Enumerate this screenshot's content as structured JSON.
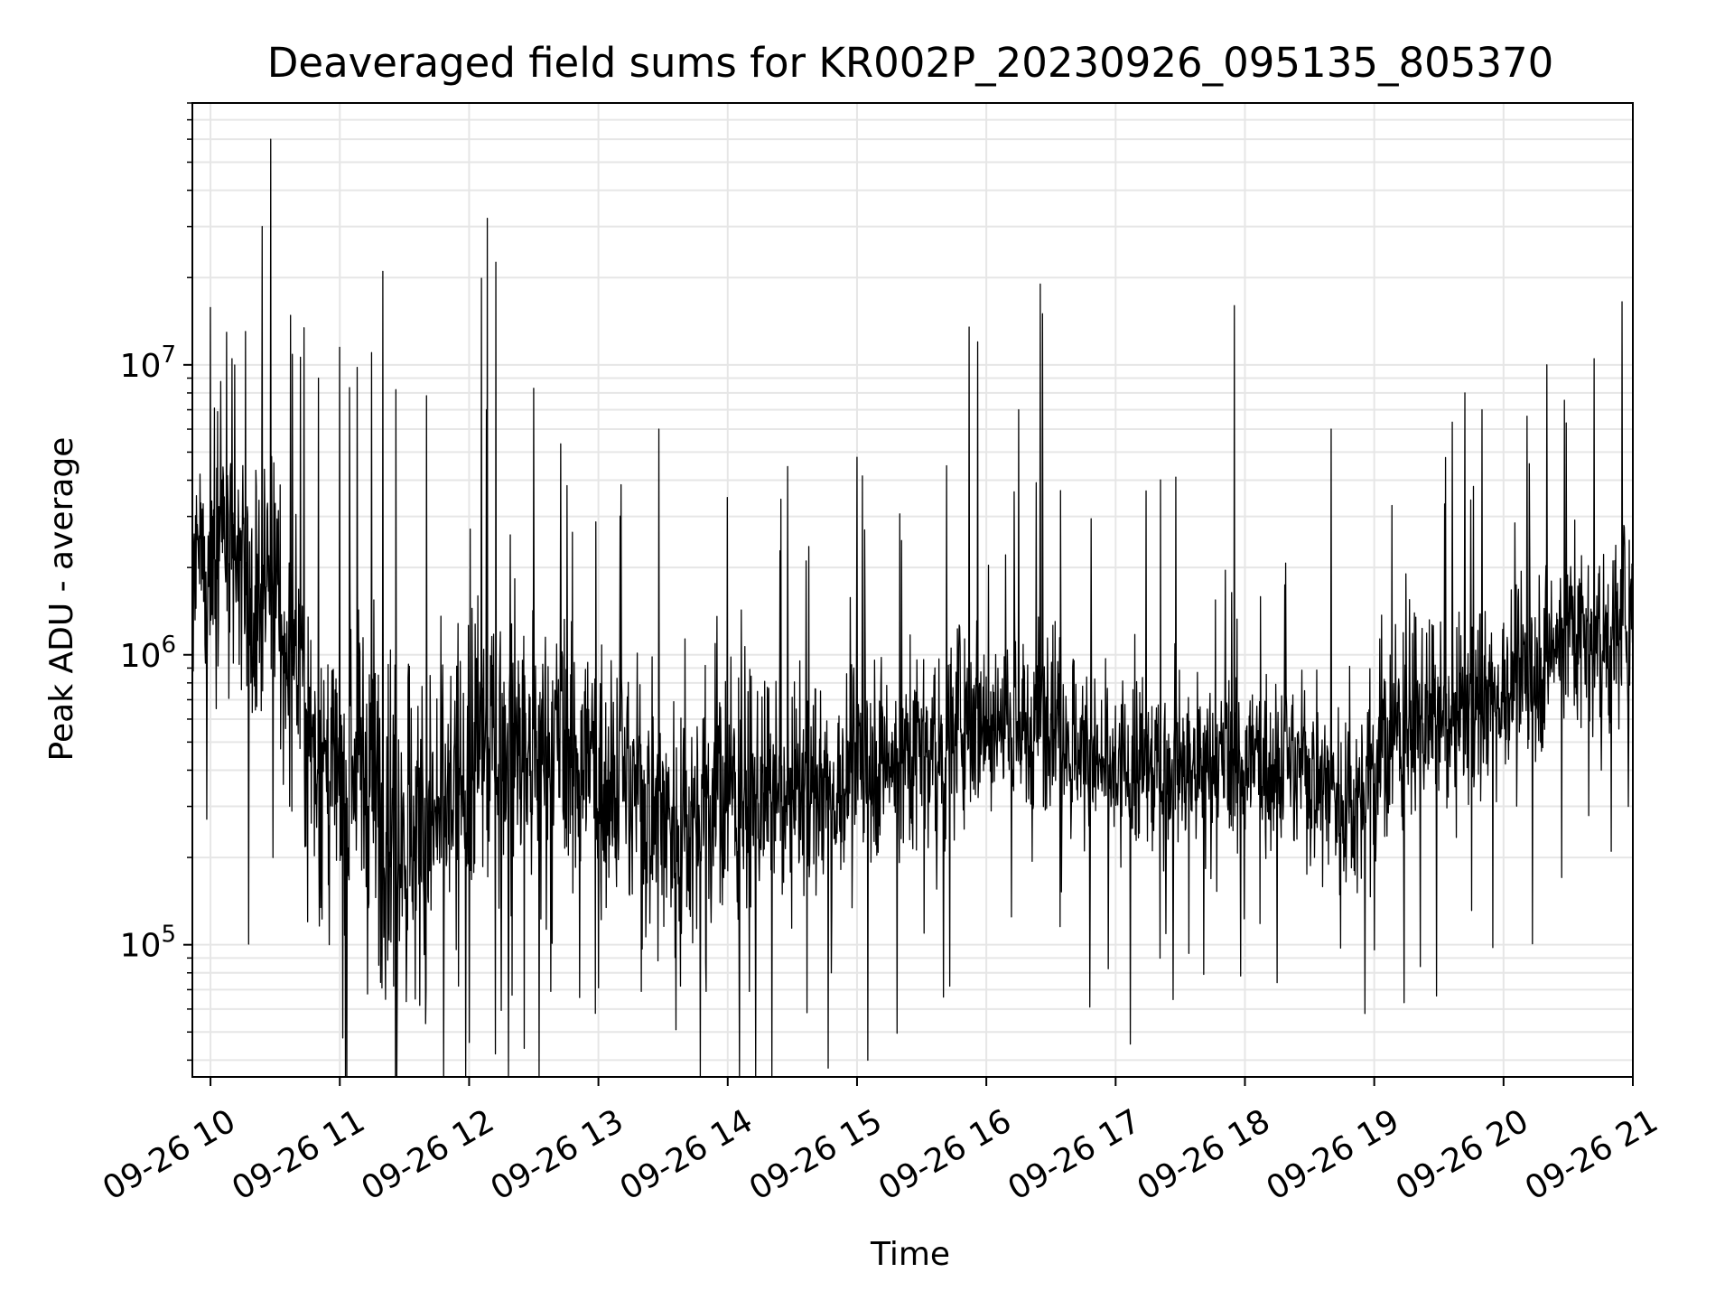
{
  "chart_data": {
    "type": "line",
    "title": "Deaveraged field sums for KR002P_20230926_095135_805370",
    "xlabel": "Time",
    "ylabel": "Peak ADU - average",
    "yscale": "log",
    "ylim": [
      35000,
      80000000
    ],
    "xlim": [
      "2023-09-26 09:51:35",
      "2023-09-26 21:00:00"
    ],
    "grid": true,
    "legend": "none",
    "line_color": "#000000",
    "grid_color": "#e6e6e6",
    "x_ticks": [
      {
        "t": "2023-09-26 10:00",
        "label": "09-26 10"
      },
      {
        "t": "2023-09-26 11:00",
        "label": "09-26 11"
      },
      {
        "t": "2023-09-26 12:00",
        "label": "09-26 12"
      },
      {
        "t": "2023-09-26 13:00",
        "label": "09-26 13"
      },
      {
        "t": "2023-09-26 14:00",
        "label": "09-26 14"
      },
      {
        "t": "2023-09-26 15:00",
        "label": "09-26 15"
      },
      {
        "t": "2023-09-26 16:00",
        "label": "09-26 16"
      },
      {
        "t": "2023-09-26 17:00",
        "label": "09-26 17"
      },
      {
        "t": "2023-09-26 18:00",
        "label": "09-26 18"
      },
      {
        "t": "2023-09-26 19:00",
        "label": "09-26 19"
      },
      {
        "t": "2023-09-26 20:00",
        "label": "09-26 20"
      },
      {
        "t": "2023-09-26 21:00",
        "label": "09-26 21"
      }
    ],
    "y_ticks": [
      {
        "value": 100000,
        "base": "10",
        "exp": "5"
      },
      {
        "value": 1000000,
        "base": "10",
        "exp": "6"
      },
      {
        "value": 10000000,
        "base": "10",
        "exp": "7"
      }
    ],
    "series": [
      {
        "points": [
          [
            "2023-09-26 09:51:35",
            1500000
          ],
          [
            "2023-09-26 09:55",
            2200000
          ],
          [
            "2023-09-26 10:00",
            1800000
          ],
          [
            "2023-09-26 10:05",
            2600000
          ],
          [
            "2023-09-26 10:10",
            1700000
          ],
          [
            "2023-09-26 10:15",
            1900000
          ],
          [
            "2023-09-26 10:20",
            1400000
          ],
          [
            "2023-09-26 10:25",
            2100000
          ],
          [
            "2023-09-26 10:30",
            1500000
          ],
          [
            "2023-09-26 10:35",
            900000
          ],
          [
            "2023-09-26 10:40",
            1100000
          ],
          [
            "2023-09-26 10:45",
            600000
          ],
          [
            "2023-09-26 10:50",
            420000
          ],
          [
            "2023-09-26 10:55",
            360000
          ],
          [
            "2023-09-26 11:00",
            340000
          ],
          [
            "2023-09-26 11:10",
            450000
          ],
          [
            "2023-09-26 11:20",
            300000
          ],
          [
            "2023-09-26 11:30",
            280000
          ],
          [
            "2023-09-26 11:40",
            240000
          ],
          [
            "2023-09-26 11:50",
            300000
          ],
          [
            "2023-09-26 12:00",
            420000
          ],
          [
            "2023-09-26 12:10",
            550000
          ],
          [
            "2023-09-26 12:20",
            480000
          ],
          [
            "2023-09-26 12:30",
            400000
          ],
          [
            "2023-09-26 12:40",
            500000
          ],
          [
            "2023-09-26 12:50",
            450000
          ],
          [
            "2023-09-26 13:00",
            420000
          ],
          [
            "2023-09-26 13:10",
            380000
          ],
          [
            "2023-09-26 13:20",
            320000
          ],
          [
            "2023-09-26 13:30",
            280000
          ],
          [
            "2023-09-26 13:40",
            260000
          ],
          [
            "2023-09-26 13:50",
            300000
          ],
          [
            "2023-09-26 14:00",
            350000
          ],
          [
            "2023-09-26 14:10",
            320000
          ],
          [
            "2023-09-26 14:20",
            300000
          ],
          [
            "2023-09-26 14:30",
            340000
          ],
          [
            "2023-09-26 14:40",
            360000
          ],
          [
            "2023-09-26 14:50",
            330000
          ],
          [
            "2023-09-26 15:00",
            400000
          ],
          [
            "2023-09-26 15:10",
            450000
          ],
          [
            "2023-09-26 15:20",
            420000
          ],
          [
            "2023-09-26 15:30",
            500000
          ],
          [
            "2023-09-26 15:40",
            480000
          ],
          [
            "2023-09-26 15:50",
            650000
          ],
          [
            "2023-09-26 16:00",
            600000
          ],
          [
            "2023-09-26 16:10",
            580000
          ],
          [
            "2023-09-26 16:20",
            520000
          ],
          [
            "2023-09-26 16:30",
            700000
          ],
          [
            "2023-09-26 16:40",
            500000
          ],
          [
            "2023-09-26 16:50",
            420000
          ],
          [
            "2023-09-26 17:00",
            380000
          ],
          [
            "2023-09-26 17:10",
            400000
          ],
          [
            "2023-09-26 17:20",
            420000
          ],
          [
            "2023-09-26 17:30",
            380000
          ],
          [
            "2023-09-26 17:40",
            400000
          ],
          [
            "2023-09-26 17:50",
            420000
          ],
          [
            "2023-09-26 18:00",
            430000
          ],
          [
            "2023-09-26 18:10",
            450000
          ],
          [
            "2023-09-26 18:20",
            420000
          ],
          [
            "2023-09-26 18:30",
            400000
          ],
          [
            "2023-09-26 18:40",
            350000
          ],
          [
            "2023-09-26 18:50",
            300000
          ],
          [
            "2023-09-26 19:00",
            400000
          ],
          [
            "2023-09-26 19:10",
            550000
          ],
          [
            "2023-09-26 19:20",
            600000
          ],
          [
            "2023-09-26 19:30",
            550000
          ],
          [
            "2023-09-26 19:40",
            650000
          ],
          [
            "2023-09-26 19:50",
            700000
          ],
          [
            "2023-09-26 20:00",
            750000
          ],
          [
            "2023-09-26 20:10",
            800000
          ],
          [
            "2023-09-26 20:20",
            1000000
          ],
          [
            "2023-09-26 20:30",
            1300000
          ],
          [
            "2023-09-26 20:40",
            1100000
          ],
          [
            "2023-09-26 20:50",
            1200000
          ],
          [
            "2023-09-26 21:00",
            1500000
          ]
        ],
        "spread_decades": [
          [
            "2023-09-26 09:51:35",
            0.45
          ],
          [
            "2023-09-26 10:30",
            0.7
          ],
          [
            "2023-09-26 11:30",
            0.85
          ],
          [
            "2023-09-26 12:30",
            0.8
          ],
          [
            "2023-09-26 13:30",
            0.7
          ],
          [
            "2023-09-26 14:30",
            0.55
          ],
          [
            "2023-09-26 15:30",
            0.55
          ],
          [
            "2023-09-26 16:30",
            0.45
          ],
          [
            "2023-09-26 17:30",
            0.5
          ],
          [
            "2023-09-26 18:30",
            0.5
          ],
          [
            "2023-09-26 19:30",
            0.5
          ],
          [
            "2023-09-26 20:30",
            0.5
          ],
          [
            "2023-09-26 21:00",
            0.5
          ]
        ],
        "spikes": [
          [
            "2023-09-26 10:24",
            30000000
          ],
          [
            "2023-09-26 10:28",
            60000000
          ],
          [
            "2023-09-26 10:29",
            200000
          ],
          [
            "2023-09-26 10:10",
            10500000
          ],
          [
            "2023-09-26 10:45",
            120000
          ],
          [
            "2023-09-26 10:50",
            9000000
          ],
          [
            "2023-09-26 11:00",
            11500000
          ],
          [
            "2023-09-26 11:08",
            9800000
          ],
          [
            "2023-09-26 11:20",
            21000000
          ],
          [
            "2023-09-26 11:25",
            72000
          ],
          [
            "2023-09-26 11:35",
            65000
          ],
          [
            "2023-09-26 11:40",
            70000
          ],
          [
            "2023-09-26 11:55",
            72000
          ],
          [
            "2023-09-26 12:00",
            46000
          ],
          [
            "2023-09-26 12:08",
            7000000
          ],
          [
            "2023-09-26 12:08:30",
            32000000
          ],
          [
            "2023-09-26 12:20",
            67000
          ],
          [
            "2023-09-26 12:30",
            8300000
          ],
          [
            "2023-09-26 12:38",
            69000
          ],
          [
            "2023-09-26 13:00",
            71000
          ],
          [
            "2023-09-26 13:20",
            69000
          ],
          [
            "2023-09-26 13:28",
            6000000
          ],
          [
            "2023-09-26 13:38",
            72000
          ],
          [
            "2023-09-26 13:50",
            69000
          ],
          [
            "2023-09-26 14:10",
            69000
          ],
          [
            "2023-09-26 14:48",
            80000
          ],
          [
            "2023-09-26 15:00",
            4800000
          ],
          [
            "2023-09-26 15:40",
            66000
          ],
          [
            "2023-09-26 15:43",
            72000
          ],
          [
            "2023-09-26 15:52",
            13500000
          ],
          [
            "2023-09-26 15:56",
            12000000
          ],
          [
            "2023-09-26 16:15",
            7000000
          ],
          [
            "2023-09-26 16:25",
            19000000
          ],
          [
            "2023-09-26 16:26",
            15000000
          ],
          [
            "2023-09-26 16:48",
            61000
          ],
          [
            "2023-09-26 17:28",
            4100000
          ],
          [
            "2023-09-26 17:55",
            16000000
          ],
          [
            "2023-09-26 17:58",
            78000
          ],
          [
            "2023-09-26 18:15",
            74000
          ],
          [
            "2023-09-26 18:40",
            6000000
          ],
          [
            "2023-09-26 19:00",
            96000
          ],
          [
            "2023-09-26 19:42",
            8000000
          ],
          [
            "2023-09-26 19:50",
            7000000
          ],
          [
            "2023-09-26 20:20",
            10000000
          ],
          [
            "2023-09-26 20:42",
            10500000
          ],
          [
            "2023-09-26 20:55",
            16500000
          ],
          [
            "2023-09-26 20:58",
            300000
          ],
          [
            "2023-09-26 20:50",
            210000
          ]
        ]
      }
    ]
  }
}
